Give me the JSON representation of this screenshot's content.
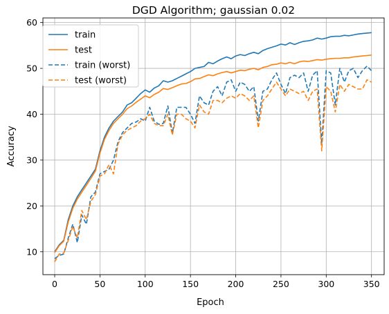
{
  "chart_data": {
    "type": "line",
    "title": "DGD Algorithm; gaussian 0.02",
    "xlabel": "Epoch",
    "ylabel": "Accuracy",
    "xlim": [
      -13,
      364
    ],
    "ylim": [
      5,
      61
    ],
    "xticks": [
      0,
      50,
      100,
      150,
      200,
      250,
      300,
      350
    ],
    "yticks": [
      10,
      20,
      30,
      40,
      50,
      60
    ],
    "grid": true,
    "legend_position": "upper-left",
    "x": [
      0,
      5,
      10,
      15,
      20,
      25,
      30,
      35,
      40,
      45,
      50,
      55,
      60,
      65,
      70,
      75,
      80,
      85,
      90,
      95,
      100,
      105,
      110,
      115,
      120,
      125,
      130,
      135,
      140,
      145,
      150,
      155,
      160,
      165,
      170,
      175,
      180,
      185,
      190,
      195,
      200,
      205,
      210,
      215,
      220,
      225,
      230,
      235,
      240,
      245,
      250,
      255,
      260,
      265,
      270,
      275,
      280,
      285,
      290,
      295,
      300,
      305,
      310,
      315,
      320,
      325,
      330,
      335,
      340,
      345,
      350
    ],
    "series": [
      {
        "name": "train",
        "color": "#1f77b4",
        "dash": "solid",
        "values": [
          10,
          11.5,
          12.5,
          17,
          20,
          22,
          23.5,
          25,
          26.5,
          28,
          32,
          35,
          37,
          38.5,
          39.5,
          40.5,
          42,
          42.5,
          43.5,
          44.5,
          45.3,
          44.8,
          45.7,
          46.2,
          47.3,
          47,
          47.3,
          47.8,
          48.3,
          48.8,
          49.3,
          50,
          50.2,
          50.4,
          51.3,
          51,
          51.6,
          52.1,
          52.5,
          52.1,
          52.7,
          53,
          52.8,
          53.2,
          53.5,
          53.2,
          53.9,
          54.3,
          54.6,
          54.9,
          55.3,
          55.1,
          55.6,
          55.2,
          55.6,
          55.9,
          56,
          56.2,
          56.6,
          56.4,
          56.6,
          56.9,
          57,
          57,
          57.2,
          57.1,
          57.3,
          57.5,
          57.6,
          57.7,
          57.8
        ]
      },
      {
        "name": "test",
        "color": "#ff7f0e",
        "dash": "solid",
        "values": [
          9.8,
          11.3,
          12.3,
          16.5,
          19.5,
          21.5,
          23,
          24.5,
          26,
          27.6,
          31.5,
          34.5,
          36.5,
          38,
          39,
          40,
          41.2,
          41.8,
          42.6,
          43.3,
          44,
          43.6,
          44.3,
          44.8,
          45.6,
          45.4,
          45.8,
          46.2,
          46.6,
          46.7,
          47.1,
          47.7,
          47.8,
          48.2,
          48.6,
          48.4,
          48.8,
          49.1,
          49.3,
          49,
          49.3,
          49.6,
          49.5,
          49.8,
          50,
          49.7,
          50.2,
          50.4,
          50.8,
          50.9,
          51.2,
          51,
          51.3,
          51,
          51.4,
          51.6,
          51.5,
          51.7,
          51.9,
          51.8,
          52,
          52.1,
          52.2,
          52.2,
          52.3,
          52.3,
          52.5,
          52.6,
          52.7,
          52.8,
          52.9
        ]
      },
      {
        "name": "train (worst)",
        "color": "#1f77b4",
        "dash": "dashed",
        "values": [
          8.5,
          9.2,
          9.5,
          13,
          16,
          12,
          18,
          16,
          22,
          23,
          27,
          27.5,
          28,
          30,
          34,
          36,
          37,
          38,
          38.3,
          39,
          38.5,
          41.5,
          38.5,
          37.8,
          38,
          41.8,
          35.8,
          41.5,
          41.5,
          41.5,
          40,
          38,
          44,
          42.5,
          42,
          45,
          46,
          44,
          47,
          47.5,
          45,
          47,
          46.5,
          45,
          46,
          38.5,
          45,
          45.5,
          47.5,
          49,
          46.5,
          44.5,
          48,
          48.5,
          48,
          49,
          45,
          48.5,
          49.5,
          33.5,
          49.5,
          49,
          42,
          50,
          47,
          49.5,
          50,
          48,
          49.5,
          50.5,
          49.5
        ]
      },
      {
        "name": "test (worst)",
        "color": "#ff7f0e",
        "dash": "dashed",
        "values": [
          7.8,
          9.5,
          9.7,
          12.5,
          15.5,
          13,
          19,
          17,
          21,
          22.5,
          26.5,
          27,
          29,
          27,
          33.5,
          35.5,
          36.5,
          37,
          37.5,
          38.5,
          39,
          40,
          38,
          37.5,
          37.5,
          40,
          35.5,
          40,
          40,
          39,
          38.5,
          37,
          42,
          40.5,
          40,
          43,
          43,
          42.5,
          43.5,
          44,
          43.5,
          44.5,
          44,
          43,
          44,
          37,
          43,
          44,
          45.5,
          47,
          45.5,
          44,
          45.5,
          45,
          44.5,
          45,
          43,
          45,
          45.5,
          32,
          46,
          45,
          40.5,
          46.5,
          45,
          46.5,
          46,
          45.5,
          45.5,
          47.5,
          47
        ]
      }
    ]
  }
}
